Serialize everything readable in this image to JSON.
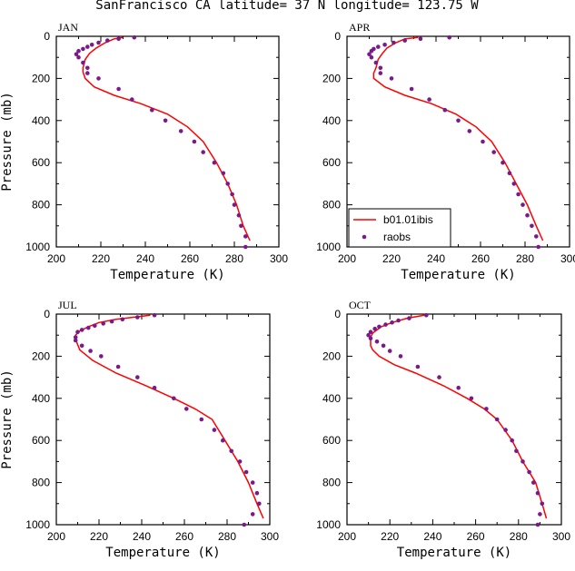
{
  "title": "SanFrancisco CA  latitude= 37 N longitude= 123.75 W",
  "colors": {
    "model_line": "#ff0000",
    "obs_marker": "#7a1a8a"
  },
  "chart_data": [
    {
      "type": "line",
      "panel": "JAN",
      "xlabel": "Temperature (K)",
      "ylabel": "Pressure (mb)",
      "xlim": [
        200,
        300
      ],
      "ylim": [
        1000,
        0
      ],
      "x_ticks": [
        200,
        220,
        240,
        260,
        280,
        300
      ],
      "y_ticks": [
        0,
        200,
        400,
        600,
        800,
        1000
      ],
      "series": [
        {
          "name": "b01.01ibis",
          "style": "line",
          "points": [
            [
              287,
              970
            ],
            [
              284,
              900
            ],
            [
              281,
              800
            ],
            [
              277,
              700
            ],
            [
              272,
              600
            ],
            [
              266,
              500
            ],
            [
              259,
              430
            ],
            [
              250,
              370
            ],
            [
              238,
              320
            ],
            [
              226,
              280
            ],
            [
              217,
              240
            ],
            [
              213,
              200
            ],
            [
              212,
              170
            ],
            [
              212,
              150
            ],
            [
              213,
              110
            ],
            [
              215,
              80
            ],
            [
              218,
              55
            ],
            [
              222,
              30
            ],
            [
              226,
              12
            ],
            [
              230,
              5
            ]
          ]
        },
        {
          "name": "raobs",
          "style": "marker",
          "points": [
            [
              285,
              1000
            ],
            [
              285,
              950
            ],
            [
              283,
              900
            ],
            [
              282,
              850
            ],
            [
              280,
              800
            ],
            [
              279,
              750
            ],
            [
              277,
              700
            ],
            [
              275,
              650
            ],
            [
              271,
              600
            ],
            [
              266,
              550
            ],
            [
              262,
              500
            ],
            [
              256,
              450
            ],
            [
              249,
              400
            ],
            [
              243,
              350
            ],
            [
              234,
              300
            ],
            [
              228,
              250
            ],
            [
              219,
              200
            ],
            [
              214,
              175
            ],
            [
              214,
              150
            ],
            [
              212,
              125
            ],
            [
              210,
              100
            ],
            [
              209,
              85
            ],
            [
              210,
              70
            ],
            [
              212,
              60
            ],
            [
              214,
              50
            ],
            [
              216,
              40
            ],
            [
              219,
              30
            ],
            [
              223,
              20
            ],
            [
              228,
              12
            ],
            [
              235,
              5
            ]
          ]
        }
      ]
    },
    {
      "type": "line",
      "panel": "APR",
      "xlabel": "Temperature (K)",
      "ylabel": "Pressure (mb)",
      "xlim": [
        200,
        300
      ],
      "ylim": [
        1000,
        0
      ],
      "x_ticks": [
        200,
        220,
        240,
        260,
        280,
        300
      ],
      "y_ticks": [
        0,
        200,
        400,
        600,
        800,
        1000
      ],
      "series": [
        {
          "name": "b01.01ibis",
          "style": "line",
          "points": [
            [
              288,
              970
            ],
            [
              285,
              900
            ],
            [
              281,
              800
            ],
            [
              276,
              700
            ],
            [
              271,
              600
            ],
            [
              265,
              500
            ],
            [
              258,
              430
            ],
            [
              249,
              370
            ],
            [
              238,
              320
            ],
            [
              226,
              280
            ],
            [
              217,
              240
            ],
            [
              212,
              200
            ],
            [
              212,
              175
            ],
            [
              213,
              150
            ],
            [
              214,
              110
            ],
            [
              216,
              80
            ],
            [
              218,
              55
            ],
            [
              222,
              30
            ],
            [
              226,
              12
            ],
            [
              232,
              5
            ]
          ]
        },
        {
          "name": "raobs",
          "style": "marker",
          "points": [
            [
              286,
              1000
            ],
            [
              285,
              950
            ],
            [
              283,
              900
            ],
            [
              281,
              850
            ],
            [
              279,
              800
            ],
            [
              277,
              750
            ],
            [
              275,
              700
            ],
            [
              273,
              650
            ],
            [
              270,
              600
            ],
            [
              266,
              550
            ],
            [
              261,
              500
            ],
            [
              255,
              450
            ],
            [
              250,
              400
            ],
            [
              244,
              350
            ],
            [
              237,
              300
            ],
            [
              229,
              250
            ],
            [
              220,
              200
            ],
            [
              215,
              175
            ],
            [
              215,
              150
            ],
            [
              213,
              125
            ],
            [
              211,
              100
            ],
            [
              210,
              85
            ],
            [
              211,
              70
            ],
            [
              212,
              60
            ],
            [
              214,
              50
            ],
            [
              217,
              40
            ],
            [
              221,
              30
            ],
            [
              226,
              20
            ],
            [
              233,
              12
            ],
            [
              246,
              5
            ]
          ]
        }
      ]
    },
    {
      "type": "line",
      "panel": "JUL",
      "xlabel": "Temperature (K)",
      "ylabel": "Pressure (mb)",
      "xlim": [
        200,
        300
      ],
      "ylim": [
        1000,
        0
      ],
      "x_ticks": [
        200,
        220,
        240,
        260,
        280,
        300
      ],
      "y_ticks": [
        0,
        200,
        400,
        600,
        800,
        1000
      ],
      "series": [
        {
          "name": "b01.01ibis",
          "style": "line",
          "points": [
            [
              297,
              970
            ],
            [
              294,
              900
            ],
            [
              290,
              800
            ],
            [
              285,
              700
            ],
            [
              279,
              600
            ],
            [
              273,
              500
            ],
            [
              265,
              450
            ],
            [
              255,
              400
            ],
            [
              242,
              340
            ],
            [
              228,
              280
            ],
            [
              217,
              220
            ],
            [
              211,
              170
            ],
            [
              209,
              120
            ],
            [
              209,
              100
            ],
            [
              211,
              80
            ],
            [
              215,
              60
            ],
            [
              220,
              40
            ],
            [
              228,
              25
            ],
            [
              236,
              15
            ],
            [
              244,
              5
            ]
          ]
        },
        {
          "name": "raobs",
          "style": "marker",
          "points": [
            [
              288,
              1000
            ],
            [
              292,
              950
            ],
            [
              295,
              900
            ],
            [
              294,
              850
            ],
            [
              292,
              800
            ],
            [
              289,
              750
            ],
            [
              286,
              700
            ],
            [
              282,
              650
            ],
            [
              278,
              600
            ],
            [
              274,
              550
            ],
            [
              268,
              500
            ],
            [
              261,
              450
            ],
            [
              255,
              400
            ],
            [
              246,
              350
            ],
            [
              238,
              300
            ],
            [
              229,
              250
            ],
            [
              221,
              200
            ],
            [
              216,
              175
            ],
            [
              212,
              150
            ],
            [
              209,
              125
            ],
            [
              209,
              110
            ],
            [
              210,
              85
            ],
            [
              212,
              75
            ],
            [
              215,
              65
            ],
            [
              218,
              55
            ],
            [
              222,
              45
            ],
            [
              226,
              35
            ],
            [
              231,
              25
            ],
            [
              238,
              15
            ],
            [
              246,
              5
            ]
          ]
        }
      ]
    },
    {
      "type": "line",
      "panel": "OCT",
      "xlabel": "Temperature (K)",
      "ylabel": "Pressure (mb)",
      "xlim": [
        200,
        300
      ],
      "ylim": [
        1000,
        0
      ],
      "x_ticks": [
        200,
        220,
        240,
        260,
        280,
        300
      ],
      "y_ticks": [
        0,
        200,
        400,
        600,
        800,
        1000
      ],
      "series": [
        {
          "name": "b01.01ibis",
          "style": "line",
          "points": [
            [
              293,
              970
            ],
            [
              291,
              900
            ],
            [
              288,
              800
            ],
            [
              282,
              700
            ],
            [
              277,
              600
            ],
            [
              270,
              500
            ],
            [
              264,
              450
            ],
            [
              256,
              400
            ],
            [
              245,
              340
            ],
            [
              232,
              280
            ],
            [
              222,
              240
            ],
            [
              215,
              200
            ],
            [
              212,
              170
            ],
            [
              211,
              150
            ],
            [
              211,
              110
            ],
            [
              212,
              90
            ],
            [
              216,
              60
            ],
            [
              221,
              40
            ],
            [
              228,
              20
            ],
            [
              236,
              5
            ]
          ]
        },
        {
          "name": "raobs",
          "style": "marker",
          "points": [
            [
              289,
              1000
            ],
            [
              290,
              950
            ],
            [
              291,
              900
            ],
            [
              289,
              850
            ],
            [
              287,
              800
            ],
            [
              285,
              750
            ],
            [
              282,
              700
            ],
            [
              279,
              650
            ],
            [
              277,
              600
            ],
            [
              274,
              550
            ],
            [
              270,
              500
            ],
            [
              265,
              450
            ],
            [
              258,
              400
            ],
            [
              252,
              350
            ],
            [
              243,
              300
            ],
            [
              233,
              250
            ],
            [
              225,
              200
            ],
            [
              220,
              175
            ],
            [
              217,
              150
            ],
            [
              214,
              130
            ],
            [
              211,
              115
            ],
            [
              210,
              100
            ],
            [
              211,
              85
            ],
            [
              213,
              70
            ],
            [
              215,
              60
            ],
            [
              218,
              50
            ],
            [
              221,
              40
            ],
            [
              224,
              30
            ],
            [
              229,
              20
            ],
            [
              237,
              5
            ]
          ]
        }
      ]
    }
  ],
  "legend": {
    "model_label": "b01.01ibis",
    "obs_label": "raobs",
    "panel": "APR",
    "placement": "bottom-left"
  }
}
